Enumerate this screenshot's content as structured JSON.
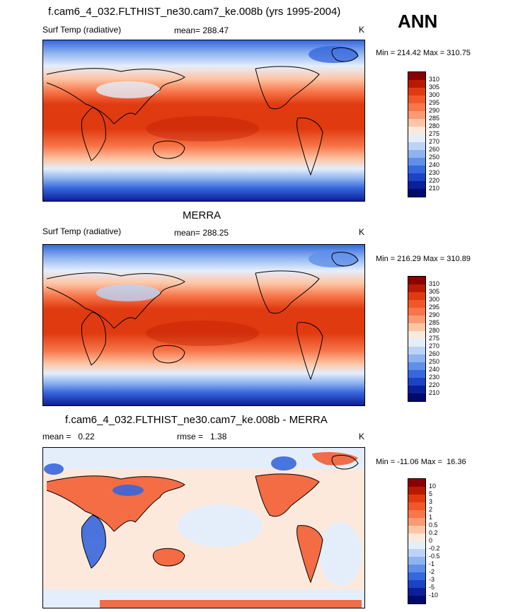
{
  "season": "ANN",
  "panels": [
    {
      "title": "f.cam6_4_032.FLTHIST_ne30.cam7_ke.008b (yrs 1995-2004)",
      "left_label": "Surf Temp (radiative)",
      "center_label": "mean= 288.47",
      "right_label": "K",
      "minmax": "Min = 214.42 Max = 310.75",
      "colorbar": {
        "labels": [
          "310",
          "305",
          "300",
          "295",
          "290",
          "285",
          "280",
          "275",
          "270",
          "260",
          "250",
          "240",
          "230",
          "220",
          "210"
        ],
        "colors": [
          "#8b0000",
          "#b81a00",
          "#e03a10",
          "#f2572a",
          "#f7764a",
          "#fa9a72",
          "#fdc5a5",
          "#fde9dc",
          "#e4eefb",
          "#bcd3f6",
          "#8eb4f0",
          "#5f8fe8",
          "#3767dc",
          "#1b43c4",
          "#0b1f99",
          "#000a6e"
        ]
      }
    },
    {
      "title": "MERRA",
      "left_label": "Surf Temp (radiative)",
      "center_label": "mean= 288.25",
      "right_label": "K",
      "minmax": "Min = 216.29 Max = 310.89",
      "colorbar": {
        "labels": [
          "310",
          "305",
          "300",
          "295",
          "290",
          "285",
          "280",
          "275",
          "270",
          "260",
          "250",
          "240",
          "230",
          "220",
          "210"
        ],
        "colors": [
          "#8b0000",
          "#b81a00",
          "#e03a10",
          "#f2572a",
          "#f7764a",
          "#fa9a72",
          "#fdc5a5",
          "#fde9dc",
          "#e4eefb",
          "#bcd3f6",
          "#8eb4f0",
          "#5f8fe8",
          "#3767dc",
          "#1b43c4",
          "#0b1f99",
          "#000a6e"
        ]
      }
    },
    {
      "title": "f.cam6_4_032.FLTHIST_ne30.cam7_ke.008b - MERRA",
      "left_label": "mean =   0.22",
      "center_label": "rmse =   1.38",
      "right_label": "K",
      "minmax": "Min = -11.06 Max =  16.36",
      "colorbar": {
        "labels": [
          "10",
          "5",
          "3",
          "2",
          "1",
          "0.5",
          "0.2",
          "0",
          "-0.2",
          "-0.5",
          "-1",
          "-2",
          "-3",
          "-5",
          "-10"
        ],
        "colors": [
          "#8b0000",
          "#b81a00",
          "#e03a10",
          "#f2572a",
          "#f7764a",
          "#fa9a72",
          "#fdc5a5",
          "#fde9dc",
          "#e4eefb",
          "#bcd3f6",
          "#8eb4f0",
          "#5f8fe8",
          "#3767dc",
          "#1b43c4",
          "#0b1f99",
          "#000a6e"
        ]
      }
    }
  ]
}
